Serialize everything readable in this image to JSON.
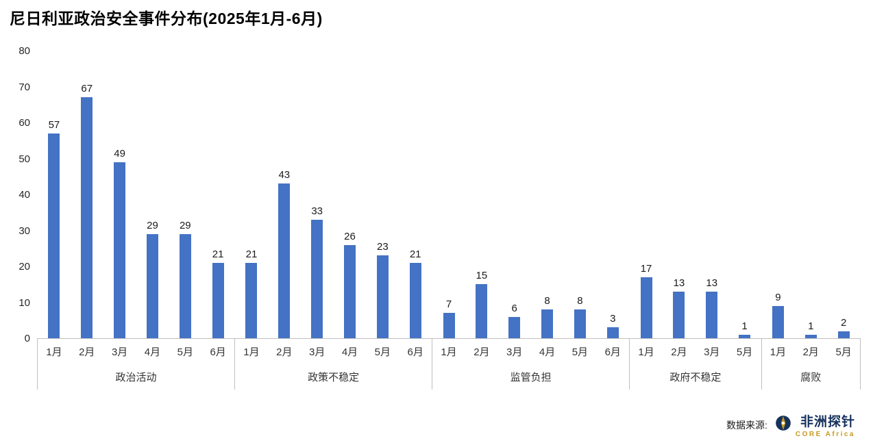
{
  "title": "尼日利亚政治安全事件分布(2025年1月-6月)",
  "source": {
    "label": "数据来源:",
    "logo_name": "非洲探针",
    "logo_subtitle": "CORE Africa"
  },
  "icons": {
    "logo": "core-africa-compass-icon"
  },
  "colors": {
    "bar": "#4472C4",
    "axis": "#BFBFBF",
    "logo_navy": "#16325C",
    "logo_gold": "#C79A1E"
  },
  "chart_data": {
    "type": "bar",
    "title": "尼日利亚政治安全事件分布(2025年1月-6月)",
    "xlabel": "",
    "ylabel": "",
    "ylim": [
      0,
      80
    ],
    "yticks": [
      0,
      10,
      20,
      30,
      40,
      50,
      60,
      70,
      80
    ],
    "grid": false,
    "legend": false,
    "groups": [
      {
        "label": "政治活动",
        "categories": [
          "1月",
          "2月",
          "3月",
          "4月",
          "5月",
          "6月"
        ],
        "values": [
          57,
          67,
          49,
          29,
          29,
          21
        ]
      },
      {
        "label": "政策不稳定",
        "categories": [
          "1月",
          "2月",
          "3月",
          "4月",
          "5月",
          "6月"
        ],
        "values": [
          21,
          43,
          33,
          26,
          23,
          21
        ]
      },
      {
        "label": "监管负担",
        "categories": [
          "1月",
          "2月",
          "3月",
          "4月",
          "5月",
          "6月"
        ],
        "values": [
          7,
          15,
          6,
          8,
          8,
          3
        ]
      },
      {
        "label": "政府不稳定",
        "categories": [
          "1月",
          "2月",
          "3月",
          "5月"
        ],
        "values": [
          17,
          13,
          13,
          1
        ]
      },
      {
        "label": "腐败",
        "categories": [
          "1月",
          "2月",
          "5月"
        ],
        "values": [
          9,
          1,
          2
        ]
      }
    ]
  }
}
